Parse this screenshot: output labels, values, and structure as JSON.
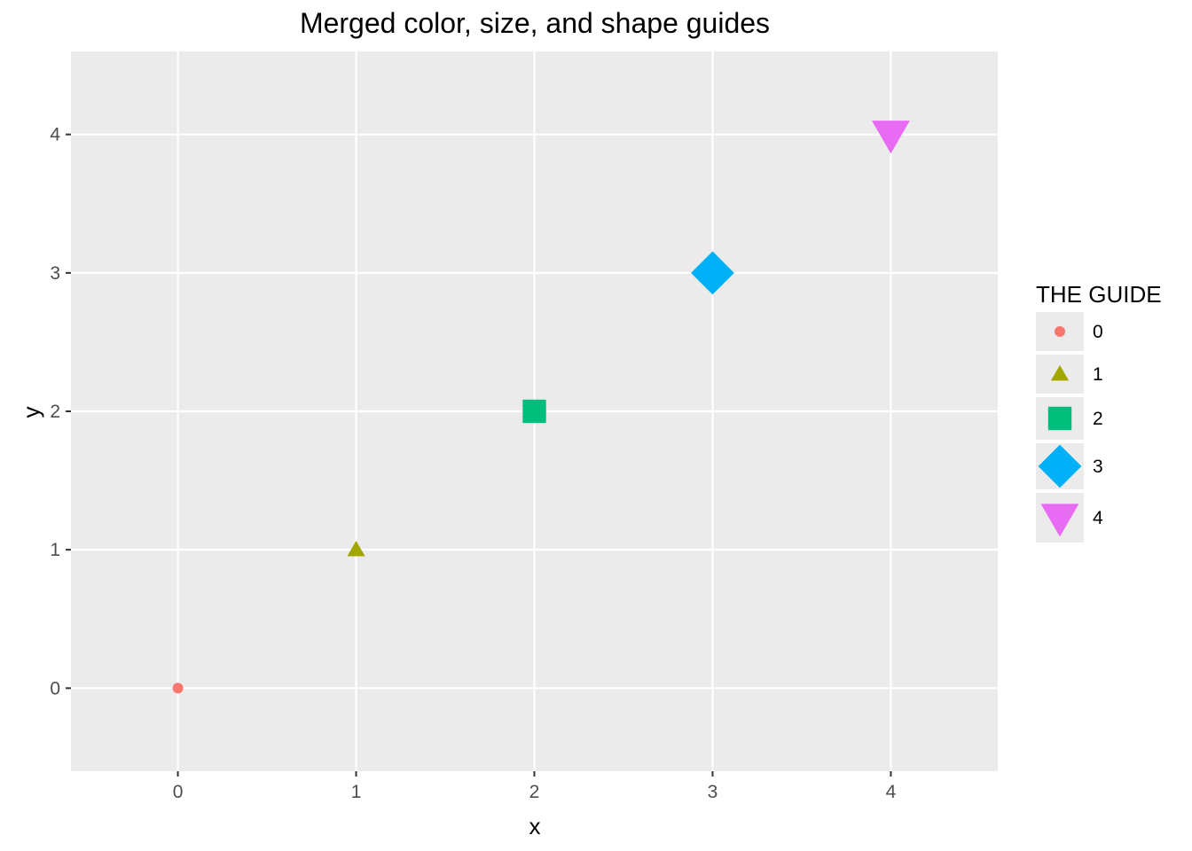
{
  "chart_data": {
    "type": "scatter",
    "title": "Merged color, size, and shape guides",
    "xlabel": "x",
    "ylabel": "y",
    "xlim": [
      -0.6,
      4.6
    ],
    "ylim": [
      -0.6,
      4.6
    ],
    "xticks": [
      0,
      1,
      2,
      3,
      4
    ],
    "yticks": [
      0,
      1,
      2,
      3,
      4
    ],
    "grid": true,
    "panel_background": "#EBEBEB",
    "grid_color": "#FFFFFF",
    "legend": {
      "title": "THE GUIDE",
      "placement": "right"
    },
    "points": [
      {
        "x": 0,
        "y": 0,
        "group": "0",
        "color": "#F8766D",
        "shape": "circle",
        "size_rank": 1
      },
      {
        "x": 1,
        "y": 1,
        "group": "1",
        "color": "#A3A500",
        "shape": "triangle-up",
        "size_rank": 2
      },
      {
        "x": 2,
        "y": 2,
        "group": "2",
        "color": "#00BF7D",
        "shape": "square",
        "size_rank": 3
      },
      {
        "x": 3,
        "y": 3,
        "group": "3",
        "color": "#00B0F6",
        "shape": "diamond",
        "size_rank": 4
      },
      {
        "x": 4,
        "y": 4,
        "group": "4",
        "color": "#E76BF3",
        "shape": "triangle-down",
        "size_rank": 5
      }
    ]
  }
}
